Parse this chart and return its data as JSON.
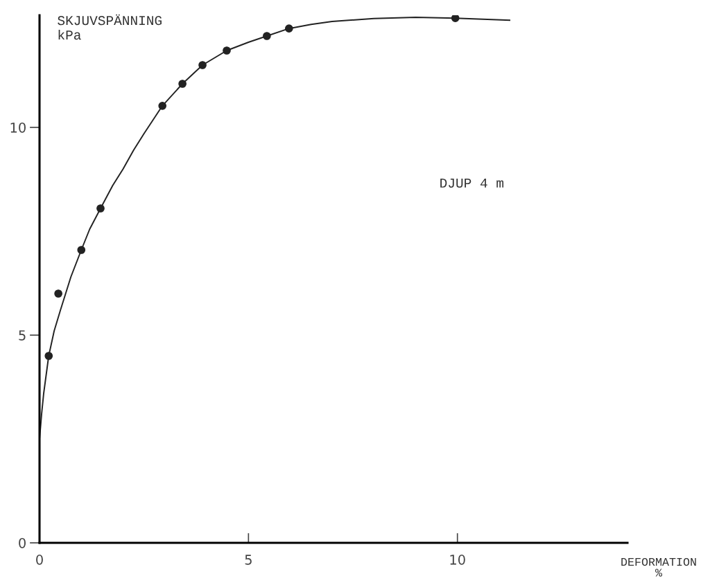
{
  "chart_data": {
    "type": "scatter",
    "xlabel": "DEFORMATION\n%",
    "ylabel": "SKJUVSPÄNNING\nkPa",
    "annotations": [
      "DJUP 4 m"
    ],
    "xlim": [
      0,
      14.07
    ],
    "ylim": [
      0,
      12.7
    ],
    "xticks": [
      0,
      5,
      10
    ],
    "yticks": [
      0,
      5,
      10
    ],
    "grid": false,
    "legend": false,
    "series": [
      {
        "color": "#222222",
        "marker": "circle",
        "x": [
          0.22,
          0.45,
          1.0,
          1.46,
          2.94,
          3.42,
          3.9,
          4.48,
          5.44,
          5.97,
          9.95
        ],
        "values": [
          4.5,
          6.0,
          7.05,
          8.05,
          10.52,
          11.05,
          11.5,
          11.85,
          12.2,
          12.38,
          12.63
        ]
      },
      {
        "type": "line",
        "color": "#222222",
        "marker": "none",
        "line_style": "solid",
        "x": [
          0,
          0.05,
          0.1,
          0.22,
          0.35,
          0.5,
          0.75,
          1.0,
          1.2,
          1.46,
          1.75,
          2.0,
          2.25,
          2.5,
          2.94,
          3.42,
          3.9,
          4.48,
          5.0,
          5.44,
          5.97,
          6.5,
          7.0,
          8.0,
          9.0,
          9.95,
          11.25
        ],
        "values": [
          2.5,
          3.1,
          3.6,
          4.5,
          5.1,
          5.6,
          6.4,
          7.05,
          7.55,
          8.05,
          8.6,
          9.0,
          9.45,
          9.85,
          10.52,
          11.05,
          11.5,
          11.85,
          12.05,
          12.2,
          12.38,
          12.48,
          12.55,
          12.62,
          12.65,
          12.63,
          12.58
        ]
      }
    ]
  }
}
